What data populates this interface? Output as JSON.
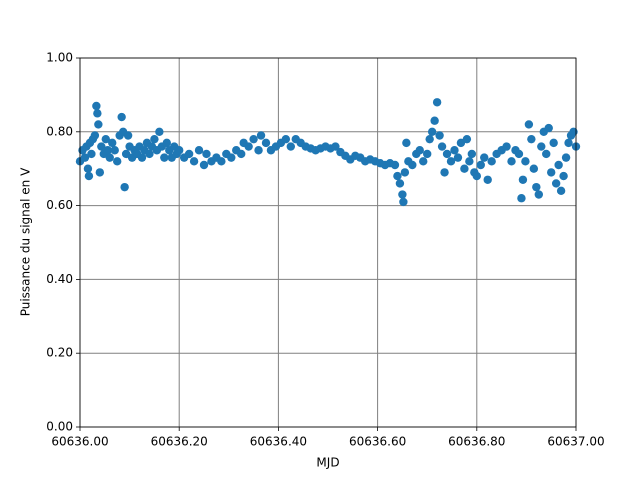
{
  "chart_data": {
    "type": "scatter",
    "xlabel": "MJD",
    "ylabel": "Puissance du signal en V",
    "color": "#1f77b4",
    "grid": true,
    "xlim": [
      60636.0,
      60637.0
    ],
    "xticks": [
      {
        "value": 60636.0,
        "label": "60636.00"
      },
      {
        "value": 60636.2,
        "label": "60636.20"
      },
      {
        "value": 60636.4,
        "label": "60636.40"
      },
      {
        "value": 60636.6,
        "label": "60636.60"
      },
      {
        "value": 60636.8,
        "label": "60636.80"
      },
      {
        "value": 60637.0,
        "label": "60637.00"
      }
    ],
    "ylim": [
      0,
      1
    ],
    "yticks": [
      {
        "value": 0,
        "label": "0.00"
      },
      {
        "value": 0.2,
        "label": "0.20"
      },
      {
        "value": 0.4,
        "label": "0.40"
      },
      {
        "value": 0.6,
        "label": "0.60"
      },
      {
        "value": 0.8,
        "label": "0.80"
      },
      {
        "value": 1,
        "label": "1.00"
      }
    ],
    "x": [
      60636.0,
      60636.005,
      60636.01,
      60636.013,
      60636.016,
      60636.018,
      60636.02,
      60636.023,
      60636.026,
      60636.03,
      60636.033,
      60636.035,
      60636.037,
      60636.04,
      60636.043,
      60636.048,
      60636.052,
      60636.056,
      60636.06,
      60636.065,
      60636.07,
      60636.075,
      60636.08,
      60636.084,
      60636.087,
      60636.09,
      60636.093,
      60636.097,
      60636.1,
      60636.105,
      60636.11,
      60636.115,
      60636.12,
      60636.125,
      60636.13,
      60636.135,
      60636.14,
      60636.145,
      60636.15,
      60636.155,
      60636.16,
      60636.165,
      60636.17,
      60636.175,
      60636.18,
      60636.185,
      60636.19,
      60636.195,
      60636.2,
      60636.21,
      60636.22,
      60636.23,
      60636.24,
      60636.25,
      60636.255,
      60636.265,
      60636.275,
      60636.285,
      60636.295,
      60636.305,
      60636.315,
      60636.325,
      60636.33,
      60636.34,
      60636.35,
      60636.36,
      60636.365,
      60636.375,
      60636.385,
      60636.395,
      60636.405,
      60636.415,
      60636.425,
      60636.435,
      60636.445,
      60636.455,
      60636.465,
      60636.475,
      60636.485,
      60636.495,
      60636.505,
      60636.515,
      60636.525,
      60636.535,
      60636.545,
      60636.555,
      60636.565,
      60636.575,
      60636.585,
      60636.595,
      60636.605,
      60636.615,
      60636.625,
      60636.635,
      60636.64,
      60636.645,
      60636.65,
      60636.652,
      60636.655,
      60636.658,
      60636.662,
      60636.67,
      60636.678,
      60636.685,
      60636.692,
      60636.7,
      60636.705,
      60636.71,
      60636.715,
      60636.72,
      60636.725,
      60636.73,
      60636.735,
      60636.74,
      60636.748,
      60636.755,
      60636.762,
      60636.768,
      60636.775,
      60636.78,
      60636.785,
      60636.79,
      60636.795,
      60636.8,
      60636.808,
      60636.815,
      60636.822,
      60636.83,
      60636.84,
      60636.85,
      60636.86,
      60636.87,
      60636.878,
      60636.885,
      60636.89,
      60636.893,
      60636.898,
      60636.905,
      60636.91,
      60636.915,
      60636.92,
      60636.925,
      60636.93,
      60636.935,
      60636.94,
      60636.945,
      60636.95,
      60636.955,
      60636.96,
      60636.965,
      60636.97,
      60636.975,
      60636.98,
      60636.985,
      60636.99,
      60636.995,
      60637.0
    ],
    "values": [
      0.72,
      0.75,
      0.73,
      0.76,
      0.7,
      0.68,
      0.77,
      0.74,
      0.78,
      0.79,
      0.87,
      0.85,
      0.82,
      0.69,
      0.76,
      0.74,
      0.78,
      0.75,
      0.73,
      0.77,
      0.75,
      0.72,
      0.79,
      0.84,
      0.8,
      0.65,
      0.74,
      0.79,
      0.76,
      0.73,
      0.75,
      0.74,
      0.76,
      0.73,
      0.75,
      0.77,
      0.74,
      0.76,
      0.78,
      0.75,
      0.8,
      0.76,
      0.73,
      0.77,
      0.75,
      0.73,
      0.76,
      0.74,
      0.75,
      0.73,
      0.74,
      0.72,
      0.75,
      0.71,
      0.74,
      0.72,
      0.73,
      0.72,
      0.74,
      0.73,
      0.75,
      0.74,
      0.77,
      0.76,
      0.78,
      0.75,
      0.79,
      0.77,
      0.75,
      0.76,
      0.77,
      0.78,
      0.76,
      0.78,
      0.77,
      0.76,
      0.755,
      0.75,
      0.755,
      0.76,
      0.755,
      0.76,
      0.745,
      0.735,
      0.725,
      0.735,
      0.73,
      0.72,
      0.725,
      0.72,
      0.715,
      0.71,
      0.715,
      0.71,
      0.68,
      0.66,
      0.63,
      0.61,
      0.69,
      0.77,
      0.72,
      0.71,
      0.74,
      0.75,
      0.72,
      0.74,
      0.78,
      0.8,
      0.83,
      0.88,
      0.79,
      0.76,
      0.69,
      0.74,
      0.72,
      0.75,
      0.73,
      0.77,
      0.7,
      0.78,
      0.72,
      0.74,
      0.69,
      0.68,
      0.71,
      0.73,
      0.67,
      0.72,
      0.74,
      0.75,
      0.76,
      0.72,
      0.75,
      0.74,
      0.62,
      0.67,
      0.72,
      0.82,
      0.78,
      0.7,
      0.65,
      0.63,
      0.76,
      0.8,
      0.74,
      0.81,
      0.69,
      0.77,
      0.66,
      0.71,
      0.64,
      0.68,
      0.73,
      0.77,
      0.79,
      0.8,
      0.76
    ]
  }
}
